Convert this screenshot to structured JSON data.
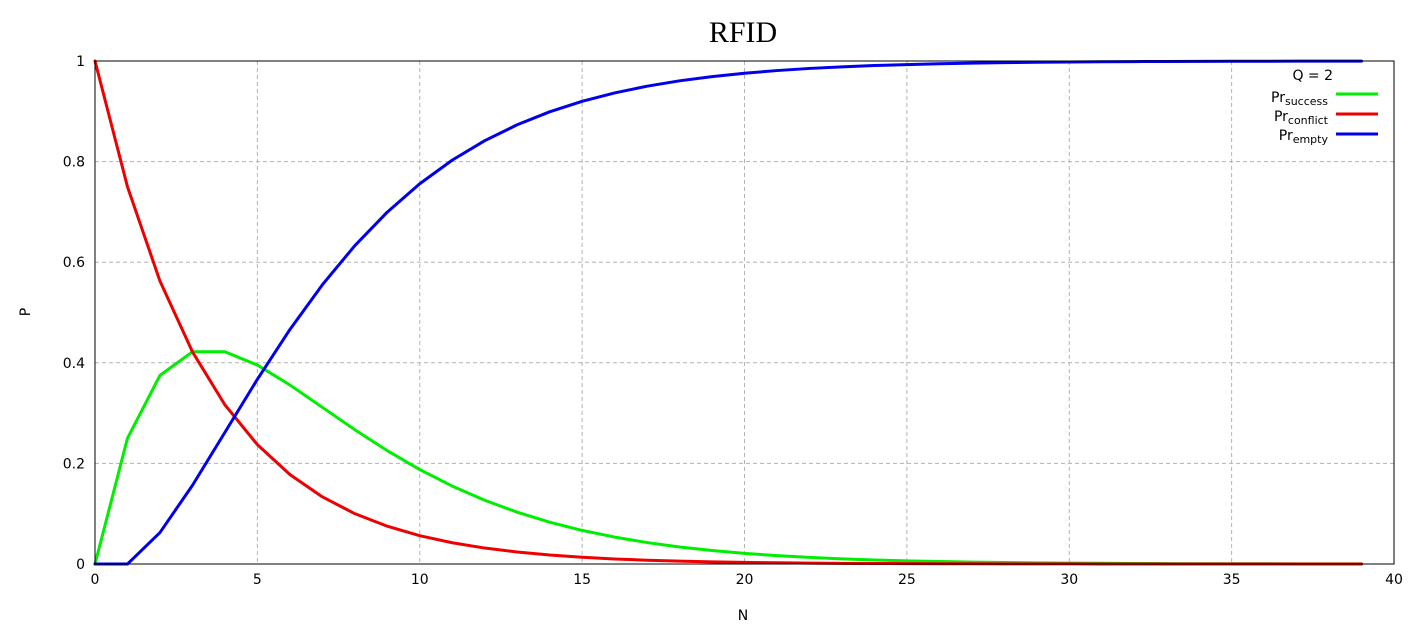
{
  "chart_data": {
    "type": "line",
    "title": "RFID",
    "xlabel": "N",
    "ylabel": "P",
    "xlim": [
      0,
      40
    ],
    "ylim": [
      0,
      1
    ],
    "grid": true,
    "x_ticks": [
      0,
      5,
      10,
      15,
      20,
      25,
      30,
      35,
      40
    ],
    "y_ticks": [
      0,
      0.2,
      0.4,
      0.6,
      0.8,
      1
    ],
    "x_tick_labels": [
      "0",
      "5",
      "10",
      "15",
      "20",
      "25",
      "30",
      "35",
      "40"
    ],
    "y_tick_labels": [
      "0",
      "0.2",
      "0.4",
      "0.6",
      "0.8",
      "1"
    ],
    "legend": {
      "title": "Q = 2",
      "position": "top-right",
      "entries": [
        {
          "base": "Pr",
          "sub": "success"
        },
        {
          "base": "Pr",
          "sub": "conflict"
        },
        {
          "base": "Pr",
          "sub": "empty"
        }
      ]
    },
    "x": [
      0,
      1,
      2,
      3,
      4,
      5,
      6,
      7,
      8,
      9,
      10,
      11,
      12,
      13,
      14,
      15,
      16,
      17,
      18,
      19,
      20,
      21,
      22,
      23,
      24,
      25,
      26,
      27,
      28,
      29,
      30,
      31,
      32,
      33,
      34,
      35,
      36,
      37,
      38,
      39
    ],
    "series": [
      {
        "name": "success",
        "color": "#00ee00",
        "values": [
          0,
          0.25,
          0.375,
          0.4219,
          0.4219,
          0.3955,
          0.356,
          0.3115,
          0.267,
          0.2253,
          0.1877,
          0.1549,
          0.1267,
          0.103,
          0.0832,
          0.0668,
          0.0535,
          0.0426,
          0.0338,
          0.0268,
          0.0211,
          0.0166,
          0.0131,
          0.0102,
          0.008,
          0.0063,
          0.0049,
          0.0038,
          0.003,
          0.0023,
          0.0018,
          0.0014,
          0.0011,
          0.0008,
          0.0006,
          0.0005,
          0.0004,
          0.0003,
          0.0002,
          0.0002
        ]
      },
      {
        "name": "conflict",
        "color": "#ee0000",
        "values": [
          1,
          0.75,
          0.5625,
          0.4219,
          0.3164,
          0.2373,
          0.178,
          0.1335,
          0.1001,
          0.0751,
          0.0563,
          0.0422,
          0.0317,
          0.0238,
          0.0178,
          0.0134,
          0.01,
          0.0075,
          0.0056,
          0.0042,
          0.0032,
          0.0024,
          0.0018,
          0.0013,
          0.001,
          0.0008,
          0.0006,
          0.0004,
          0.0003,
          0.0002,
          0.0002,
          0.0001,
          0.0001,
          0.0001,
          0.0001,
          0,
          0,
          0,
          0,
          0
        ]
      },
      {
        "name": "empty",
        "color": "#0000ee",
        "values": [
          0,
          0,
          0.0625,
          0.1563,
          0.2617,
          0.3672,
          0.466,
          0.555,
          0.6329,
          0.6996,
          0.756,
          0.8029,
          0.8416,
          0.8732,
          0.899,
          0.9198,
          0.9365,
          0.9499,
          0.9606,
          0.969,
          0.9757,
          0.981,
          0.9852,
          0.9884,
          0.991,
          0.9929,
          0.9945,
          0.9957,
          0.9967,
          0.9974,
          0.998,
          0.9985,
          0.9988,
          0.9991,
          0.9993,
          0.9995,
          0.9996,
          0.9997,
          0.9998,
          0.9998
        ]
      }
    ]
  }
}
